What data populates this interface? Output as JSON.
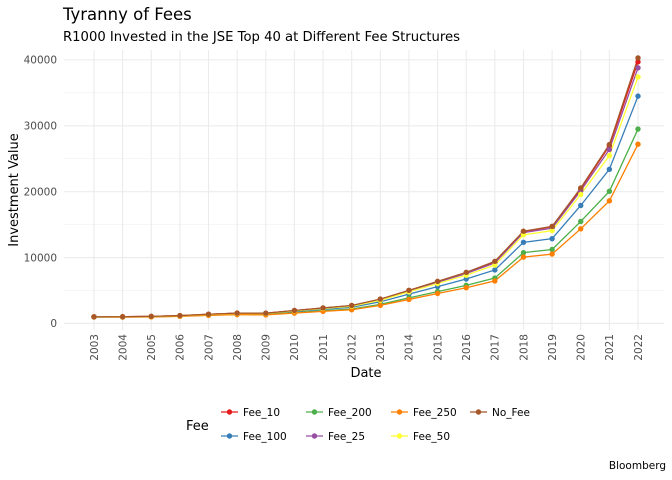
{
  "title": "Tyranny of Fees",
  "subtitle": "R1000 Invested in the JSE Top 40 at Different Fee Structures",
  "caption": "Bloomberg",
  "chart_data": {
    "type": "line",
    "title": "Tyranny of Fees",
    "subtitle": "R1000 Invested in the JSE Top 40 at Different Fee Structures",
    "xlabel": "Date",
    "ylabel": "Investment Value",
    "x": [
      "2003",
      "2004",
      "2005",
      "2006",
      "2007",
      "2008",
      "2009",
      "2010",
      "2011",
      "2012",
      "2013",
      "2014",
      "2015",
      "2016",
      "2017",
      "2018",
      "2019",
      "2020",
      "2021",
      "2022"
    ],
    "ylim": [
      -1000,
      41500
    ],
    "yticks": [
      0,
      10000,
      20000,
      30000,
      40000
    ],
    "ytick_labels": [
      "0",
      "10000",
      "20000",
      "30000",
      "40000"
    ],
    "grid": true,
    "legend": {
      "title": "Fee",
      "position": "bottom"
    },
    "series": [
      {
        "name": "Fee_10",
        "color": "#E41A1C",
        "values": [
          1000,
          1010,
          1060,
          1180,
          1380,
          1550,
          1540,
          1950,
          2330,
          2700,
          3660,
          4990,
          6330,
          7680,
          9330,
          13940,
          14660,
          20420,
          26960,
          39700
        ]
      },
      {
        "name": "Fee_100",
        "color": "#377EB8",
        "values": [
          990,
          990,
          1030,
          1140,
          1320,
          1460,
          1440,
          1800,
          2130,
          2450,
          3280,
          4440,
          5590,
          6740,
          8110,
          12310,
          12860,
          17900,
          23390,
          34500
        ]
      },
      {
        "name": "Fee_200",
        "color": "#4DAF4A",
        "values": [
          980,
          970,
          1000,
          1090,
          1250,
          1370,
          1330,
          1640,
          1920,
          2180,
          2890,
          3870,
          4830,
          5780,
          6890,
          10740,
          11220,
          15480,
          20050,
          29500
        ]
      },
      {
        "name": "Fee_25",
        "color": "#984EA3",
        "values": [
          1000,
          1010,
          1060,
          1180,
          1380,
          1540,
          1530,
          1940,
          2310,
          2680,
          3620,
          4930,
          6240,
          7570,
          9180,
          13780,
          14450,
          20140,
          26400,
          38800
        ]
      },
      {
        "name": "Fee_250",
        "color": "#FF7F00",
        "values": [
          970,
          960,
          980,
          1070,
          1220,
          1330,
          1290,
          1570,
          1830,
          2070,
          2740,
          3640,
          4540,
          5420,
          6450,
          10070,
          10520,
          14360,
          18600,
          27200
        ]
      },
      {
        "name": "Fee_50",
        "color": "#FFFF33",
        "values": [
          1000,
          1000,
          1050,
          1170,
          1360,
          1520,
          1500,
          1900,
          2260,
          2610,
          3520,
          4780,
          6050,
          7320,
          8860,
          13450,
          14080,
          19580,
          25460,
          37400
        ]
      },
      {
        "name": "No_Fee",
        "color": "#A65628",
        "values": [
          1000,
          1010,
          1070,
          1190,
          1390,
          1560,
          1550,
          1960,
          2350,
          2720,
          3690,
          5020,
          6380,
          7750,
          9420,
          14000,
          14730,
          20560,
          27150,
          40300
        ]
      }
    ]
  }
}
